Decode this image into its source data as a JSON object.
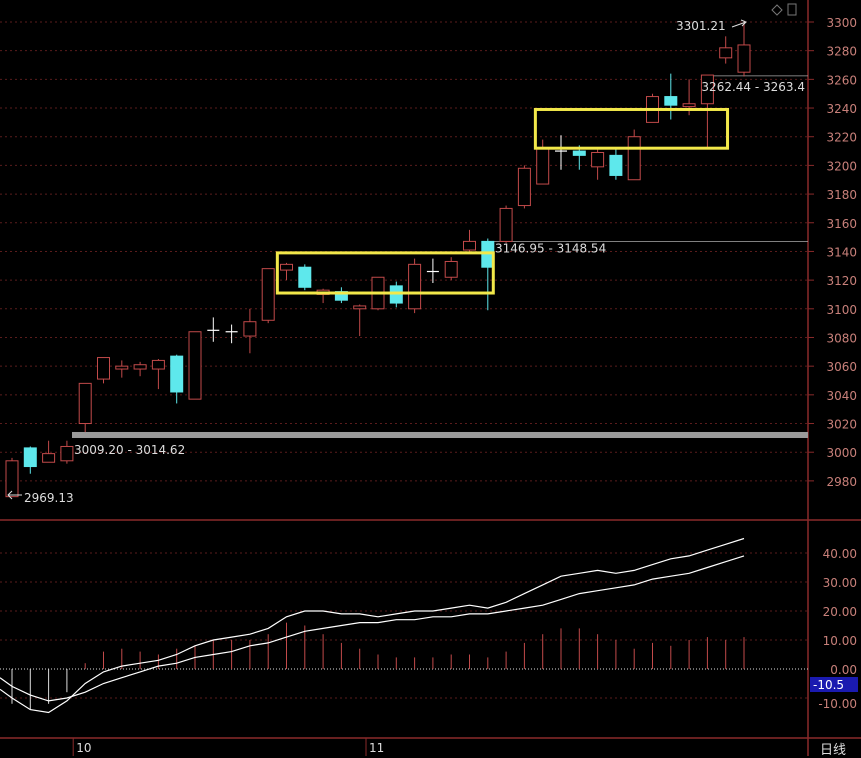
{
  "colors": {
    "up": "#c24a4a",
    "down": "#5ee8ec",
    "doji": "#ffffff",
    "grid": "#5a1c1c",
    "frame": "#8a2a2a",
    "axis_text": "#c8807a",
    "highlight": "#f2e84a",
    "support": "#9a9a9a",
    "label_bg": "#1a1ab0"
  },
  "icons": [
    "diamond-icon",
    "window-icon"
  ],
  "chart_data": [
    {
      "type": "candlestick",
      "ylim": [
        2960,
        3305
      ],
      "yticks": [
        2980,
        3000,
        3020,
        3040,
        3060,
        3080,
        3100,
        3120,
        3140,
        3160,
        3180,
        3200,
        3220,
        3240,
        3260,
        3280,
        3300
      ],
      "xticks": [
        {
          "label": "10",
          "index": 4
        },
        {
          "label": "11",
          "index": 20
        }
      ],
      "ohlc": [
        [
          2969,
          2994,
          2969,
          2996
        ],
        [
          3003,
          2990,
          2985,
          3004
        ],
        [
          2993,
          2999,
          2993,
          3008
        ],
        [
          2994,
          3004,
          2992,
          3008
        ],
        [
          3020,
          3048,
          3014,
          3048
        ],
        [
          3051,
          3066,
          3048,
          3066
        ],
        [
          3058,
          3060,
          3052,
          3064
        ],
        [
          3058,
          3061,
          3053,
          3063
        ],
        [
          3058,
          3064,
          3044,
          3065
        ],
        [
          3067,
          3042,
          3034,
          3068
        ],
        [
          3037,
          3084,
          3037,
          3084
        ],
        [
          3085,
          3085,
          3077,
          3094
        ],
        [
          3084,
          3084,
          3076,
          3089
        ],
        [
          3081,
          3091,
          3069,
          3100
        ],
        [
          3092,
          3128,
          3090,
          3128
        ],
        [
          3127,
          3131,
          3120,
          3132
        ],
        [
          3129,
          3115,
          3113,
          3131
        ],
        [
          3110,
          3113,
          3104,
          3114
        ],
        [
          3112,
          3106,
          3104,
          3115
        ],
        [
          3100,
          3102,
          3081,
          3103
        ],
        [
          3100,
          3122,
          3099,
          3122
        ],
        [
          3116,
          3104,
          3101,
          3119
        ],
        [
          3100,
          3131,
          3097,
          3135
        ],
        [
          3126,
          3126,
          3118,
          3135
        ],
        [
          3122,
          3133,
          3120,
          3136
        ],
        [
          3141,
          3147,
          3140,
          3155
        ],
        [
          3147,
          3129,
          3099,
          3149
        ],
        [
          3147,
          3170,
          3146,
          3172
        ],
        [
          3172,
          3198,
          3170,
          3200
        ],
        [
          3187,
          3212,
          3187,
          3218
        ],
        [
          3210,
          3210,
          3197,
          3221
        ],
        [
          3210,
          3207,
          3197,
          3214
        ],
        [
          3199,
          3209,
          3190,
          3211
        ],
        [
          3207,
          3193,
          3190,
          3212
        ],
        [
          3190,
          3220,
          3190,
          3225
        ],
        [
          3230,
          3248,
          3230,
          3250
        ],
        [
          3248,
          3242,
          3232,
          3264
        ],
        [
          3241,
          3243,
          3235,
          3260
        ],
        [
          3243,
          3263,
          3212,
          3263
        ],
        [
          3275,
          3282,
          3271,
          3290
        ],
        [
          3265,
          3284,
          3262,
          3301
        ]
      ],
      "annotations": [
        {
          "text": "3301.21",
          "index": 40,
          "price": 3301.21
        },
        {
          "text": "3262.44 - 3263.4",
          "index": 38,
          "price": 3262.44
        },
        {
          "text": "3146.95 - 3148.54",
          "index": 26,
          "price": 3147
        },
        {
          "text": "3009.20 - 3014.62",
          "index": 3,
          "price": 3009.2
        },
        {
          "text": "2969.13",
          "index": 0,
          "price": 2969.13
        }
      ],
      "support_line": 3012,
      "highlight_boxes": [
        {
          "from": 14.5,
          "to": 26.3,
          "low": 3111,
          "high": 3139
        },
        {
          "from": 28.6,
          "to": 39.1,
          "low": 3212,
          "high": 3239
        }
      ]
    },
    {
      "type": "macd",
      "ylim": [
        -20,
        50
      ],
      "yticks": [
        40,
        30,
        20,
        10,
        0,
        -10
      ],
      "ytick_labels": [
        "40.00",
        "30.00",
        "20.00",
        "10.00",
        "0.00",
        "-10.00"
      ],
      "current_label": "-10.5",
      "line1": [
        -10,
        -14,
        -15,
        -11,
        -5,
        -1,
        1,
        2,
        3,
        5,
        8,
        10,
        11,
        12,
        14,
        18,
        20,
        20,
        19,
        19,
        18,
        19,
        20,
        20,
        21,
        22,
        21,
        23,
        26,
        29,
        32,
        33,
        34,
        33,
        34,
        36,
        38,
        39,
        41,
        43,
        45
      ],
      "line2": [
        -6,
        -9,
        -11,
        -10,
        -8,
        -5,
        -3,
        -1,
        1,
        2,
        4,
        5,
        6,
        8,
        9,
        11,
        13,
        14,
        15,
        16,
        16,
        17,
        17,
        18,
        18,
        19,
        19,
        20,
        21,
        22,
        24,
        26,
        27,
        28,
        29,
        31,
        32,
        33,
        35,
        37,
        39
      ],
      "hist": [
        -12,
        -14,
        -12,
        -8,
        2,
        6,
        7,
        6,
        5,
        7,
        8,
        10,
        10,
        10,
        12,
        16,
        15,
        12,
        9,
        7,
        5,
        4,
        4,
        4,
        5,
        5,
        4,
        6,
        9,
        12,
        14,
        14,
        12,
        10,
        7,
        9,
        8,
        10,
        11,
        10,
        11
      ]
    }
  ],
  "footer": {
    "period_label": "日线"
  }
}
